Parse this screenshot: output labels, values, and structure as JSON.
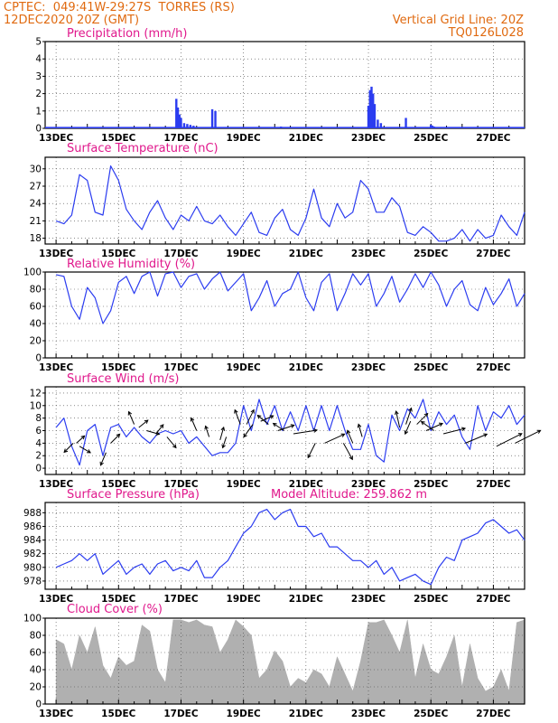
{
  "header": {
    "line1_left": "CPTEC:  049:41W-29:27S  TORRES (RS)",
    "line2_left": "12DEC2020 20Z (GMT)",
    "line1_right": "Vertical Grid Line: 20Z",
    "line2_right": "TQ0126L028"
  },
  "colors": {
    "header": "#e06a10",
    "title": "#e0188c",
    "series": "#2b3cf0",
    "cloud": "#b0b0b0",
    "arrow": "#000000"
  },
  "x_axis": {
    "labels": [
      "13DEC",
      "15DEC",
      "17DEC",
      "19DEC",
      "21DEC",
      "23DEC",
      "25DEC",
      "27DEC"
    ]
  },
  "chart_data": [
    {
      "type": "bar",
      "title": "Precipitation (mm/h)",
      "ylim": [
        0,
        5
      ],
      "yticks": [
        "0",
        "1",
        "2",
        "3",
        "4",
        "5"
      ],
      "grid": true,
      "x": [
        3.85,
        3.9,
        3.95,
        4.0,
        4.1,
        4.2,
        4.3,
        4.4,
        5.0,
        5.1,
        7.2,
        7.3,
        10.0,
        10.05,
        10.1,
        10.15,
        10.2,
        10.3,
        10.4,
        11.2,
        12.0,
        12.05,
        12.1
      ],
      "values": [
        1.7,
        1.2,
        0.8,
        0.6,
        0.3,
        0.25,
        0.2,
        0.15,
        1.1,
        1.0,
        0.1,
        0.05,
        1.3,
        2.2,
        2.4,
        2.0,
        1.4,
        0.5,
        0.3,
        0.6,
        0.2,
        0.15,
        0.1
      ]
    },
    {
      "type": "line",
      "title": "Surface Temperature (nC)",
      "ylim": [
        17,
        32
      ],
      "yticks": [
        "18",
        "21",
        "24",
        "27",
        "30"
      ],
      "grid": true,
      "x": [
        0,
        0.25,
        0.5,
        0.75,
        1.0,
        1.25,
        1.5,
        1.75,
        2.0,
        2.25,
        2.5,
        2.75,
        3.0,
        3.25,
        3.5,
        3.75,
        4.0,
        4.25,
        4.5,
        4.75,
        5.0,
        5.25,
        5.5,
        5.75,
        6.0,
        6.25,
        6.5,
        6.75,
        7.0,
        7.25,
        7.5,
        7.75,
        8.0,
        8.25,
        8.5,
        8.75,
        9.0,
        9.25,
        9.5,
        9.75,
        10.0,
        10.25,
        10.5,
        10.75,
        11.0,
        11.25,
        11.5,
        11.75,
        12.0,
        12.25,
        12.5,
        12.75,
        13.0,
        13.25,
        13.5,
        13.75,
        14.0,
        14.25,
        14.5,
        14.75,
        15.0
      ],
      "values": [
        21,
        20.5,
        22,
        29,
        28,
        22.5,
        22,
        30.5,
        28,
        23,
        21,
        19.5,
        22.5,
        24.5,
        21.5,
        19.5,
        22,
        21,
        23.5,
        21,
        20.5,
        22,
        20,
        18.5,
        20.5,
        22.5,
        19,
        18.5,
        21.5,
        23,
        19.5,
        18.5,
        21.5,
        26.5,
        21.5,
        20,
        24,
        21.5,
        22.5,
        28,
        26.5,
        22.5,
        22.5,
        25,
        23.5,
        19,
        18.5,
        20,
        19,
        17.5,
        17.5,
        18,
        19.5,
        17.5,
        19.5,
        18,
        18.5,
        22,
        20,
        18.5,
        22.5
      ]
    },
    {
      "type": "line",
      "title": "Relative Humidity (%)",
      "ylim": [
        0,
        100
      ],
      "yticks": [
        "0",
        "20",
        "40",
        "60",
        "80",
        "100"
      ],
      "grid": true,
      "x": [
        0,
        0.25,
        0.5,
        0.75,
        1.0,
        1.25,
        1.5,
        1.75,
        2.0,
        2.25,
        2.5,
        2.75,
        3.0,
        3.25,
        3.5,
        3.75,
        4.0,
        4.25,
        4.5,
        4.75,
        5.0,
        5.25,
        5.5,
        5.75,
        6.0,
        6.25,
        6.5,
        6.75,
        7.0,
        7.25,
        7.5,
        7.75,
        8.0,
        8.25,
        8.5,
        8.75,
        9.0,
        9.25,
        9.5,
        9.75,
        10.0,
        10.25,
        10.5,
        10.75,
        11.0,
        11.25,
        11.5,
        11.75,
        12.0,
        12.25,
        12.5,
        12.75,
        13.0,
        13.25,
        13.5,
        13.75,
        14.0,
        14.25,
        14.5,
        14.75,
        15.0
      ],
      "values": [
        97,
        95,
        60,
        45,
        82,
        70,
        40,
        55,
        88,
        95,
        75,
        95,
        100,
        72,
        98,
        100,
        82,
        95,
        98,
        80,
        92,
        100,
        78,
        88,
        98,
        55,
        70,
        90,
        60,
        75,
        80,
        100,
        70,
        55,
        88,
        98,
        55,
        75,
        98,
        85,
        98,
        60,
        75,
        95,
        65,
        80,
        98,
        82,
        100,
        85,
        60,
        80,
        90,
        62,
        55,
        82,
        62,
        75,
        92,
        60,
        75
      ]
    },
    {
      "type": "line",
      "title": "Surface Wind (m/s)",
      "ylim": [
        -1,
        13
      ],
      "yticks": [
        "0",
        "2",
        "4",
        "6",
        "8",
        "10",
        "12"
      ],
      "grid": true,
      "x": [
        0,
        0.25,
        0.5,
        0.75,
        1.0,
        1.25,
        1.5,
        1.75,
        2.0,
        2.25,
        2.5,
        2.75,
        3.0,
        3.25,
        3.5,
        3.75,
        4.0,
        4.25,
        4.5,
        4.75,
        5.0,
        5.25,
        5.5,
        5.75,
        6.0,
        6.25,
        6.5,
        6.75,
        7.0,
        7.25,
        7.5,
        7.75,
        8.0,
        8.25,
        8.5,
        8.75,
        9.0,
        9.25,
        9.5,
        9.75,
        10.0,
        10.25,
        10.5,
        10.75,
        11.0,
        11.25,
        11.5,
        11.75,
        12.0,
        12.25,
        12.5,
        12.75,
        13.0,
        13.25,
        13.5,
        13.75,
        14.0,
        14.25,
        14.5,
        14.75,
        15.0
      ],
      "values": [
        6.5,
        8,
        3.5,
        0.5,
        6,
        7,
        2,
        6.5,
        7,
        5,
        6.5,
        5,
        4,
        5.5,
        6,
        5.5,
        6,
        4,
        5,
        3.5,
        2,
        2.5,
        2.5,
        4,
        10,
        6,
        11,
        7,
        10,
        6,
        9,
        6,
        10,
        6,
        10,
        6,
        10,
        6,
        3,
        3,
        7,
        2,
        1,
        8.5,
        6,
        9.5,
        8,
        11,
        6,
        9,
        7,
        8.5,
        5,
        3,
        10,
        6,
        9,
        8,
        10,
        7,
        8.5
      ]
    },
    {
      "type": "line",
      "title": "Surface Pressure (hPa)",
      "annotation": "Model Altitude: 259.862 m",
      "ylim": [
        976.8,
        989.5
      ],
      "yticks": [
        "978",
        "980",
        "982",
        "984",
        "986",
        "988"
      ],
      "grid": true,
      "x": [
        0,
        0.25,
        0.5,
        0.75,
        1.0,
        1.25,
        1.5,
        1.75,
        2.0,
        2.25,
        2.5,
        2.75,
        3.0,
        3.25,
        3.5,
        3.75,
        4.0,
        4.25,
        4.5,
        4.75,
        5.0,
        5.25,
        5.5,
        5.75,
        6.0,
        6.25,
        6.5,
        6.75,
        7.0,
        7.25,
        7.5,
        7.75,
        8.0,
        8.25,
        8.5,
        8.75,
        9.0,
        9.25,
        9.5,
        9.75,
        10.0,
        10.25,
        10.5,
        10.75,
        11.0,
        11.25,
        11.5,
        11.75,
        12.0,
        12.25,
        12.5,
        12.75,
        13.0,
        13.25,
        13.5,
        13.75,
        14.0,
        14.25,
        14.5,
        14.75,
        15.0
      ],
      "values": [
        980,
        980.5,
        981,
        982,
        981,
        982,
        979,
        980,
        981,
        979,
        980,
        980.5,
        979,
        980.5,
        981,
        979.5,
        980,
        979.5,
        981,
        978.5,
        978.5,
        980,
        981,
        983,
        985,
        986,
        988,
        988.5,
        987,
        988,
        988.5,
        986,
        986,
        984.5,
        985,
        983,
        983,
        982,
        981,
        981,
        980,
        981,
        979,
        980,
        978,
        978.5,
        979,
        978,
        977.5,
        980,
        981.5,
        981,
        984,
        984.5,
        985,
        986.5,
        987,
        986,
        985,
        985.5,
        984
      ]
    },
    {
      "type": "area",
      "title": "Cloud Cover (%)",
      "ylim": [
        0,
        100
      ],
      "yticks": [
        "0",
        "20",
        "40",
        "60",
        "80",
        "100"
      ],
      "grid": true,
      "x": [
        0,
        0.25,
        0.5,
        0.75,
        1.0,
        1.25,
        1.5,
        1.75,
        2.0,
        2.25,
        2.5,
        2.75,
        3.0,
        3.25,
        3.5,
        3.75,
        4.0,
        4.25,
        4.5,
        4.75,
        5.0,
        5.25,
        5.5,
        5.75,
        6.0,
        6.25,
        6.5,
        6.75,
        7.0,
        7.25,
        7.5,
        7.75,
        8.0,
        8.25,
        8.5,
        8.75,
        9.0,
        9.25,
        9.5,
        9.75,
        10.0,
        10.25,
        10.5,
        10.75,
        11.0,
        11.25,
        11.5,
        11.75,
        12.0,
        12.25,
        12.5,
        12.75,
        13.0,
        13.25,
        13.5,
        13.75,
        14.0,
        14.25,
        14.5,
        14.75,
        15.0
      ],
      "values": [
        75,
        70,
        40,
        80,
        60,
        90,
        45,
        30,
        55,
        45,
        50,
        92,
        85,
        40,
        25,
        98,
        98,
        95,
        98,
        92,
        90,
        60,
        75,
        98,
        90,
        80,
        30,
        40,
        62,
        50,
        20,
        30,
        25,
        40,
        35,
        20,
        55,
        35,
        15,
        50,
        95,
        95,
        98,
        80,
        60,
        98,
        30,
        70,
        40,
        35,
        55,
        80,
        20,
        70,
        30,
        15,
        20,
        40,
        15,
        95,
        98
      ]
    }
  ],
  "wind_arrows": [
    {
      "x": 0.55,
      "y": 4,
      "dx": -10,
      "dy": 10
    },
    {
      "x": 0.65,
      "y": 4,
      "dx": 9,
      "dy": -8
    },
    {
      "x": 0.75,
      "y": 3.5,
      "dx": 12,
      "dy": 7
    },
    {
      "x": 1.6,
      "y": 2.5,
      "dx": -6,
      "dy": 14
    },
    {
      "x": 1.75,
      "y": 4,
      "dx": 10,
      "dy": -10
    },
    {
      "x": 2.5,
      "y": 7,
      "dx": -6,
      "dy": -14
    },
    {
      "x": 2.65,
      "y": 6.5,
      "dx": 10,
      "dy": -8
    },
    {
      "x": 2.9,
      "y": 6,
      "dx": 14,
      "dy": 4
    },
    {
      "x": 3.2,
      "y": 5.5,
      "dx": 8,
      "dy": -10
    },
    {
      "x": 3.55,
      "y": 5,
      "dx": 10,
      "dy": 12
    },
    {
      "x": 4.5,
      "y": 6,
      "dx": -6,
      "dy": -14
    },
    {
      "x": 4.9,
      "y": 5,
      "dx": -4,
      "dy": -12
    },
    {
      "x": 5.25,
      "y": 4.5,
      "dx": 4,
      "dy": -14
    },
    {
      "x": 5.45,
      "y": 5,
      "dx": -4,
      "dy": 12
    },
    {
      "x": 5.9,
      "y": 7,
      "dx": -6,
      "dy": -16
    },
    {
      "x": 6.1,
      "y": 7,
      "dx": 8,
      "dy": -16
    },
    {
      "x": 6.3,
      "y": 7,
      "dx": -10,
      "dy": 14
    },
    {
      "x": 6.55,
      "y": 7.5,
      "dx": 14,
      "dy": -6
    },
    {
      "x": 6.8,
      "y": 7,
      "dx": -12,
      "dy": -10
    },
    {
      "x": 7.1,
      "y": 6,
      "dx": 18,
      "dy": -6
    },
    {
      "x": 7.3,
      "y": 6,
      "dx": -12,
      "dy": -8
    },
    {
      "x": 7.6,
      "y": 5.5,
      "dx": 26,
      "dy": -4
    },
    {
      "x": 8.3,
      "y": 4,
      "dx": -8,
      "dy": 16
    },
    {
      "x": 8.6,
      "y": 4,
      "dx": 22,
      "dy": -10
    },
    {
      "x": 9.2,
      "y": 4,
      "dx": 10,
      "dy": 18
    },
    {
      "x": 9.5,
      "y": 4,
      "dx": -6,
      "dy": -14
    },
    {
      "x": 9.8,
      "y": 5,
      "dx": -4,
      "dy": -14
    },
    {
      "x": 11.0,
      "y": 6.5,
      "dx": -4,
      "dy": -18
    },
    {
      "x": 11.2,
      "y": 7,
      "dx": 6,
      "dy": -18
    },
    {
      "x": 11.35,
      "y": 7.5,
      "dx": -6,
      "dy": 14
    },
    {
      "x": 11.55,
      "y": 7,
      "dx": 12,
      "dy": -12
    },
    {
      "x": 11.85,
      "y": 6,
      "dx": 18,
      "dy": -8
    },
    {
      "x": 12.1,
      "y": 6,
      "dx": -14,
      "dy": -10
    },
    {
      "x": 12.4,
      "y": 5.5,
      "dx": 24,
      "dy": -6
    },
    {
      "x": 13.1,
      "y": 4,
      "dx": 24,
      "dy": -10
    },
    {
      "x": 14.1,
      "y": 3.5,
      "dx": 28,
      "dy": -14
    },
    {
      "x": 14.7,
      "y": 4,
      "dx": 28,
      "dy": -14
    }
  ]
}
